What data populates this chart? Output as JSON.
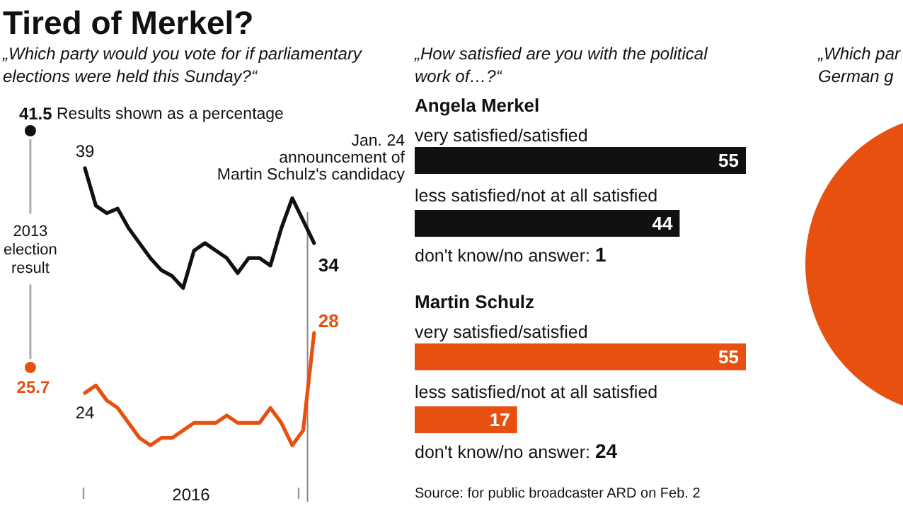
{
  "chart_data": [
    {
      "type": "line",
      "title": "Tired of Merkel?",
      "subtitle": "„Which party would you vote for if parliamentary\nelections were held this Sunday?“",
      "annotations": [
        "Results shown as a percentage",
        "2016",
        "Jan. 24\nannouncement of\nMartin Schulz's candidacy",
        "2013\nelection\nresult",
        "41.5",
        "25.7"
      ],
      "categories": [
        null,
        null,
        null,
        null,
        null,
        null,
        null,
        null,
        null,
        null,
        null,
        null,
        null,
        null,
        null,
        null,
        null,
        null,
        null,
        null,
        null,
        null
      ],
      "series": [
        {
          "type": "line",
          "color": "#111111",
          "values": [
            39,
            36.5,
            36,
            36.3,
            35,
            34,
            33,
            32.2,
            31.8,
            31,
            33.5,
            34,
            33.5,
            33,
            32,
            33,
            33,
            32.5,
            35,
            37,
            35.5,
            34
          ],
          "value_labels": [
            "39",
            null,
            null,
            null,
            null,
            null,
            null,
            null,
            null,
            null,
            null,
            null,
            null,
            null,
            null,
            null,
            null,
            null,
            null,
            null,
            null,
            "34"
          ]
        },
        {
          "type": "line",
          "color": "#e8500f",
          "values": [
            24,
            24.5,
            23.5,
            23,
            22,
            21,
            20.5,
            21,
            21,
            21.5,
            22,
            22,
            22,
            22.5,
            22,
            22,
            22,
            23,
            22,
            20.5,
            21.5,
            28
          ],
          "value_labels": [
            "24",
            null,
            null,
            null,
            null,
            null,
            null,
            null,
            null,
            null,
            null,
            null,
            null,
            null,
            null,
            null,
            null,
            null,
            null,
            null,
            null,
            "28"
          ]
        }
      ]
    },
    {
      "type": "bar",
      "orientation": "horizontal",
      "title": "„How satisfied are you with the political\nwork of…?“",
      "subtitle": "Angela Merkel",
      "annotations": [
        "don't know/no answer: 1"
      ],
      "categories": [
        "very satisfied/satisfied",
        "less satisfied/not at all satisfied"
      ],
      "xlim": [
        0,
        55
      ],
      "data_labels": true,
      "color": "#111111",
      "values": [
        55,
        44
      ]
    },
    {
      "type": "bar",
      "orientation": "horizontal",
      "title": "Martin Schulz",
      "annotations": [
        "don't know/no answer: 24",
        "Source: for public broadcaster ARD on Feb. 2"
      ],
      "categories": [
        "very satisfied/satisfied",
        "less satisfied/not at all satisfied"
      ],
      "xlim": [
        0,
        55
      ],
      "data_labels": true,
      "color": "#e8500f",
      "values": [
        55,
        17
      ]
    },
    {
      "type": "other",
      "title": "„Which par\nGerman g"
    }
  ]
}
